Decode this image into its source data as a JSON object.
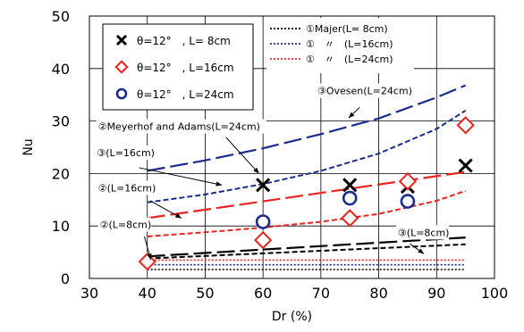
{
  "chart_data": {
    "type": "scatter",
    "xlabel": "Dr (%)",
    "ylabel": "Nu",
    "xlim": [
      30,
      100
    ],
    "ylim": [
      0,
      50
    ],
    "xticks": [
      30,
      40,
      50,
      60,
      70,
      80,
      90,
      100
    ],
    "yticks": [
      0,
      10,
      20,
      30,
      40,
      50
    ],
    "grid": true,
    "scatter_series": [
      {
        "name": "θ=12°　, L= 8cm",
        "marker": "x",
        "color": "#000000",
        "points": [
          [
            60,
            17.8
          ],
          [
            75,
            17.8
          ],
          [
            85,
            17.5
          ],
          [
            95,
            21.5
          ]
        ]
      },
      {
        "name": "θ=12°　, L=16cm",
        "marker": "diamond",
        "color": "#e8241f",
        "points": [
          [
            40,
            3.2
          ],
          [
            60,
            7.3
          ],
          [
            75,
            11.5
          ],
          [
            85,
            18.5
          ],
          [
            95,
            29.2
          ]
        ]
      },
      {
        "name": "θ=12°　, L=24cm",
        "marker": "circle",
        "color": "#1a2c8c",
        "points": [
          [
            60,
            10.8
          ],
          [
            75,
            15.3
          ],
          [
            85,
            14.7
          ]
        ]
      }
    ],
    "curve_series": [
      {
        "name": "①Majer(L= 8cm)",
        "color": "#000000",
        "style": "dotted",
        "points": [
          [
            40,
            1.7
          ],
          [
            95,
            1.7
          ]
        ]
      },
      {
        "name": "①　〃　(L=16cm)",
        "color": "#1a2c8c",
        "style": "dotted",
        "points": [
          [
            40,
            2.6
          ],
          [
            95,
            2.6
          ]
        ]
      },
      {
        "name": "①　〃　(L=24cm)",
        "color": "#e8241f",
        "style": "dotted",
        "points": [
          [
            40,
            3.5
          ],
          [
            95,
            3.5
          ]
        ]
      },
      {
        "color": "#1a2c8c",
        "style": "dash-long",
        "points": [
          [
            40,
            20.5
          ],
          [
            50,
            22.5
          ],
          [
            60,
            24.8
          ],
          [
            70,
            27.5
          ],
          [
            80,
            30.5
          ],
          [
            90,
            34.5
          ],
          [
            95,
            36.8
          ]
        ]
      },
      {
        "color": "#1a2c8c",
        "style": "dash-short",
        "points": [
          [
            40,
            14.5
          ],
          [
            50,
            16.0
          ],
          [
            60,
            18.0
          ],
          [
            70,
            20.5
          ],
          [
            80,
            23.8
          ],
          [
            90,
            28.5
          ],
          [
            95,
            32.0
          ]
        ]
      },
      {
        "color": "#e8241f",
        "style": "dash-long",
        "points": [
          [
            40,
            11.5
          ],
          [
            95,
            20.3
          ]
        ]
      },
      {
        "color": "#e8241f",
        "style": "dash-short",
        "points": [
          [
            40,
            8.0
          ],
          [
            50,
            8.8
          ],
          [
            60,
            9.7
          ],
          [
            70,
            10.8
          ],
          [
            80,
            12.3
          ],
          [
            90,
            14.8
          ],
          [
            95,
            16.7
          ]
        ]
      },
      {
        "color": "#000000",
        "style": "dash-long",
        "points": [
          [
            40,
            4.2
          ],
          [
            95,
            7.8
          ]
        ]
      },
      {
        "color": "#000000",
        "style": "dash-short",
        "points": [
          [
            40,
            3.8
          ],
          [
            95,
            6.5
          ]
        ]
      }
    ],
    "annotations": [
      {
        "text": "③Ovesen(L=24cm)",
        "x": 69.4,
        "y": 35.1
      },
      {
        "text": "②Meyerhof and Adams(L=24cm)",
        "x": 31.5,
        "y": 28.3
      },
      {
        "text": "③(L=16cm)",
        "x": 31.3,
        "y": 23.3
      },
      {
        "text": "②(L=16cm)",
        "x": 31.5,
        "y": 16.6
      },
      {
        "text": "②(L=8cm)",
        "x": 31.8,
        "y": 9.6
      },
      {
        "text": "③(L=8cm)",
        "x": 83.3,
        "y": 8.1
      }
    ],
    "arrows": [
      {
        "from": [
          76.7,
          32.6
        ],
        "to": [
          74.8,
          30.6
        ]
      },
      {
        "from": [
          53.6,
          26.9
        ],
        "to": [
          59.3,
          20.0
        ]
      },
      {
        "from": [
          38.6,
          21.1
        ],
        "to": [
          52.9,
          17.8
        ]
      },
      {
        "from": [
          40.5,
          14.8
        ],
        "to": [
          45.9,
          11.5
        ]
      },
      {
        "from": [
          39.5,
          8.0
        ],
        "to": [
          40.6,
          3.6
        ]
      },
      {
        "from": [
          85.4,
          6.6
        ],
        "to": [
          87.8,
          4.7
        ]
      }
    ]
  }
}
